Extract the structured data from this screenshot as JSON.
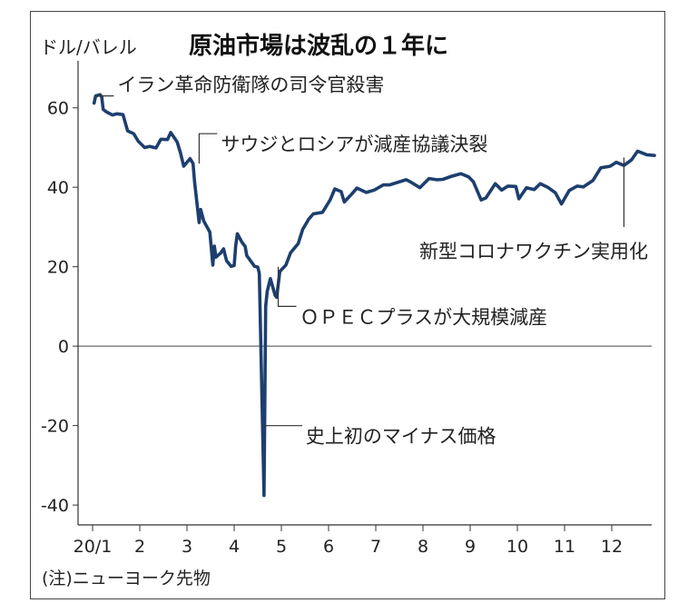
{
  "chart_data": {
    "type": "line",
    "title": "原油市場は波乱の１年に",
    "ylabel": "ドル/バレル",
    "xlabel": "",
    "note": "(注)ニューヨーク先物",
    "ylim": [
      -45,
      70
    ],
    "yticks": [
      60,
      40,
      20,
      0,
      -20,
      -40
    ],
    "ytick_labels": [
      "60",
      "40",
      "20",
      "0",
      "-20",
      "-40"
    ],
    "xticks": [
      {
        "label": "20/1",
        "month": 1
      },
      {
        "label": "2",
        "month": 2
      },
      {
        "label": "3",
        "month": 3
      },
      {
        "label": "4",
        "month": 4
      },
      {
        "label": "5",
        "month": 5
      },
      {
        "label": "6",
        "month": 6
      },
      {
        "label": "7",
        "month": 7
      },
      {
        "label": "8",
        "month": 8
      },
      {
        "label": "9",
        "month": 9
      },
      {
        "label": "10",
        "month": 10
      },
      {
        "label": "11",
        "month": 11
      },
      {
        "label": "12",
        "month": 12
      }
    ],
    "grid": false,
    "line_color": "#1d3f6e",
    "series": [
      {
        "name": "",
        "points": [
          [
            "2020-01-02",
            61.2
          ],
          [
            "2020-01-03",
            63.0
          ],
          [
            "2020-01-06",
            63.3
          ],
          [
            "2020-01-07",
            62.7
          ],
          [
            "2020-01-08",
            59.6
          ],
          [
            "2020-01-10",
            59.0
          ],
          [
            "2020-01-14",
            58.2
          ],
          [
            "2020-01-17",
            58.5
          ],
          [
            "2020-01-21",
            58.3
          ],
          [
            "2020-01-24",
            54.2
          ],
          [
            "2020-01-28",
            53.5
          ],
          [
            "2020-01-31",
            51.6
          ],
          [
            "2020-02-04",
            50.0
          ],
          [
            "2020-02-07",
            50.3
          ],
          [
            "2020-02-11",
            49.9
          ],
          [
            "2020-02-14",
            52.1
          ],
          [
            "2020-02-18",
            52.0
          ],
          [
            "2020-02-20",
            53.8
          ],
          [
            "2020-02-24",
            51.4
          ],
          [
            "2020-02-26",
            48.7
          ],
          [
            "2020-02-28",
            45.3
          ],
          [
            "2020-03-03",
            47.2
          ],
          [
            "2020-03-05",
            46.0
          ],
          [
            "2020-03-06",
            41.3
          ],
          [
            "2020-03-09",
            31.1
          ],
          [
            "2020-03-10",
            34.4
          ],
          [
            "2020-03-12",
            31.5
          ],
          [
            "2020-03-16",
            28.7
          ],
          [
            "2020-03-18",
            20.4
          ],
          [
            "2020-03-19",
            25.2
          ],
          [
            "2020-03-20",
            22.4
          ],
          [
            "2020-03-23",
            23.4
          ],
          [
            "2020-03-25",
            24.5
          ],
          [
            "2020-03-27",
            21.5
          ],
          [
            "2020-03-30",
            20.1
          ],
          [
            "2020-04-01",
            20.3
          ],
          [
            "2020-04-02",
            25.3
          ],
          [
            "2020-04-03",
            28.3
          ],
          [
            "2020-04-06",
            26.1
          ],
          [
            "2020-04-08",
            25.1
          ],
          [
            "2020-04-09",
            22.8
          ],
          [
            "2020-04-14",
            20.1
          ],
          [
            "2020-04-16",
            19.9
          ],
          [
            "2020-04-17",
            18.3
          ],
          [
            "2020-04-20",
            -37.6
          ],
          [
            "2020-04-21",
            10.0
          ],
          [
            "2020-04-22",
            13.8
          ],
          [
            "2020-04-24",
            17.0
          ],
          [
            "2020-04-27",
            12.8
          ],
          [
            "2020-04-28",
            12.3
          ],
          [
            "2020-04-30",
            18.8
          ],
          [
            "2020-05-04",
            20.4
          ],
          [
            "2020-05-07",
            23.5
          ],
          [
            "2020-05-12",
            25.8
          ],
          [
            "2020-05-15",
            29.4
          ],
          [
            "2020-05-19",
            32.0
          ],
          [
            "2020-05-22",
            33.3
          ],
          [
            "2020-05-28",
            33.7
          ],
          [
            "2020-06-02",
            36.8
          ],
          [
            "2020-06-05",
            39.6
          ],
          [
            "2020-06-09",
            38.9
          ],
          [
            "2020-06-11",
            36.3
          ],
          [
            "2020-06-16",
            38.4
          ],
          [
            "2020-06-19",
            39.8
          ],
          [
            "2020-06-25",
            38.7
          ],
          [
            "2020-06-30",
            39.3
          ],
          [
            "2020-07-06",
            40.6
          ],
          [
            "2020-07-10",
            40.6
          ],
          [
            "2020-07-15",
            41.2
          ],
          [
            "2020-07-21",
            41.9
          ],
          [
            "2020-07-24",
            41.3
          ],
          [
            "2020-07-30",
            39.9
          ],
          [
            "2020-08-05",
            42.2
          ],
          [
            "2020-08-10",
            41.9
          ],
          [
            "2020-08-14",
            42.0
          ],
          [
            "2020-08-20",
            42.8
          ],
          [
            "2020-08-26",
            43.4
          ],
          [
            "2020-08-31",
            42.6
          ],
          [
            "2020-09-03",
            41.4
          ],
          [
            "2020-09-08",
            36.8
          ],
          [
            "2020-09-11",
            37.3
          ],
          [
            "2020-09-17",
            40.9
          ],
          [
            "2020-09-21",
            39.3
          ],
          [
            "2020-09-25",
            40.3
          ],
          [
            "2020-09-30",
            40.2
          ],
          [
            "2020-10-02",
            37.1
          ],
          [
            "2020-10-07",
            39.9
          ],
          [
            "2020-10-12",
            39.4
          ],
          [
            "2020-10-16",
            40.9
          ],
          [
            "2020-10-21",
            40.0
          ],
          [
            "2020-10-26",
            38.6
          ],
          [
            "2020-10-30",
            35.8
          ],
          [
            "2020-11-04",
            39.2
          ],
          [
            "2020-11-09",
            40.3
          ],
          [
            "2020-11-13",
            40.1
          ],
          [
            "2020-11-19",
            41.7
          ],
          [
            "2020-11-24",
            44.9
          ],
          [
            "2020-11-30",
            45.3
          ],
          [
            "2020-12-04",
            46.3
          ],
          [
            "2020-12-09",
            45.5
          ],
          [
            "2020-12-14",
            46.9
          ],
          [
            "2020-12-18",
            49.1
          ],
          [
            "2020-12-24",
            48.2
          ],
          [
            "2020-12-29",
            48.0
          ]
        ]
      }
    ],
    "annotations": [
      {
        "text": "イラン革命防衛隊の司令官殺害",
        "x": "2020-01-03"
      },
      {
        "text": "サウジとロシアが減産協議決裂",
        "x": "2020-03-09"
      },
      {
        "text": "新型コロナワクチン実用化",
        "x": "2020-12-09"
      },
      {
        "text": "ＯＰＥＣプラスが大規模減産",
        "x": "2020-04-29"
      },
      {
        "text": "史上初のマイナス価格",
        "x": "2020-04-20"
      }
    ]
  }
}
